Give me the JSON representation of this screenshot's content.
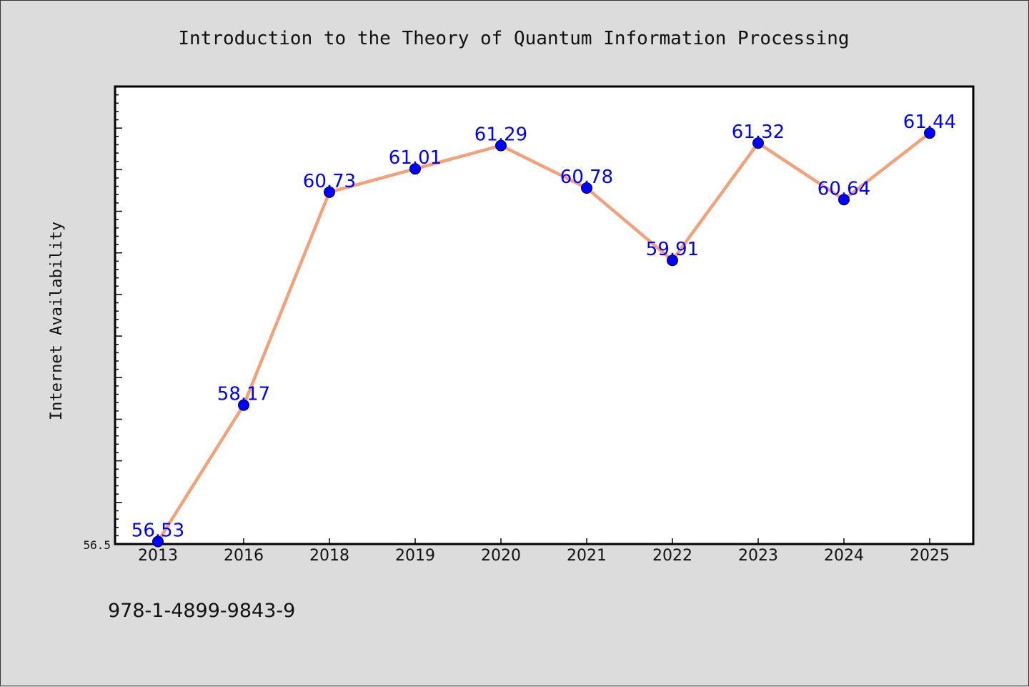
{
  "chart_data": {
    "type": "line",
    "title": "Introduction to the Theory of Quantum Information Processing",
    "xlabel": "",
    "ylabel": "Internet Availability",
    "categories": [
      "2013",
      "2016",
      "2018",
      "2019",
      "2020",
      "2021",
      "2022",
      "2023",
      "2024",
      "2025"
    ],
    "series": [
      {
        "values": [
          56.53,
          58.17,
          60.73,
          61.01,
          61.29,
          60.78,
          59.91,
          61.32,
          60.64,
          61.44
        ],
        "labels": [
          "56.53",
          "58.17",
          "60.73",
          "61.01",
          "61.29",
          "60.78",
          "59.91",
          "61.32",
          "60.64",
          "61.44"
        ],
        "line_color": "#f4a07a",
        "marker_color": "#0000ff"
      }
    ],
    "ylim": [
      56.5,
      62.0
    ],
    "yticks_labeled": [
      "56.5"
    ],
    "grid": false,
    "legend": "none"
  },
  "footer": {
    "isbn": "978-1-4899-9843-9"
  },
  "colors": {
    "background": "#dcdcdc",
    "plot_background": "#ffffff",
    "line": "#f4a07a",
    "marker": "#0000ff",
    "data_label": "#0000ff"
  }
}
